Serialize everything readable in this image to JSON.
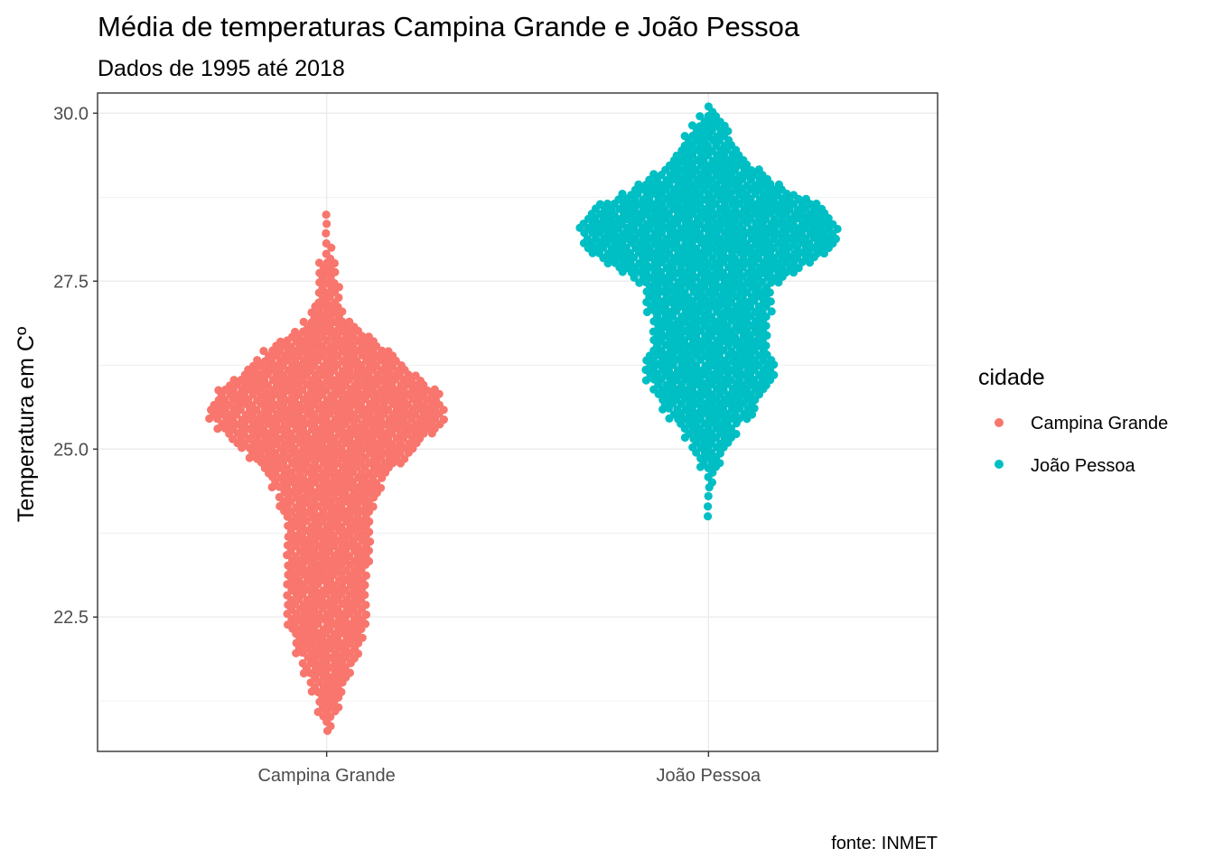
{
  "chart_data": {
    "type": "scatter",
    "subtype": "beeswarm",
    "title": "Média de temperaturas Campina Grande e João Pessoa",
    "subtitle": "Dados de 1995 até 2018",
    "xlabel": "",
    "ylabel": "Temperatura em Cº",
    "caption": "fonte: INMET",
    "categories": [
      "Campina Grande",
      "João Pessoa"
    ],
    "ylim": [
      20.5,
      30.3
    ],
    "y_ticks": [
      22.5,
      25.0,
      27.5,
      30.0
    ],
    "y_tick_labels": [
      "22.5",
      "25.0",
      "27.5",
      "30.0"
    ],
    "grid": true,
    "legend": {
      "title": "cidade",
      "position": "right",
      "entries": [
        "Campina Grande",
        "João Pessoa"
      ]
    },
    "series": [
      {
        "name": "Campina Grande",
        "color": "#F8766D",
        "category": "Campina Grande",
        "min": 20.8,
        "max": 28.6,
        "density_profile": [
          [
            20.8,
            2
          ],
          [
            21.2,
            6
          ],
          [
            21.6,
            10
          ],
          [
            22.0,
            16
          ],
          [
            22.5,
            19
          ],
          [
            23.0,
            19
          ],
          [
            23.5,
            20
          ],
          [
            24.0,
            21
          ],
          [
            24.5,
            26
          ],
          [
            25.0,
            40
          ],
          [
            25.3,
            52
          ],
          [
            25.6,
            56
          ],
          [
            25.9,
            50
          ],
          [
            26.2,
            38
          ],
          [
            26.5,
            28
          ],
          [
            26.8,
            14
          ],
          [
            27.0,
            8
          ],
          [
            27.3,
            6
          ],
          [
            27.6,
            5
          ],
          [
            27.9,
            3
          ],
          [
            28.1,
            1
          ],
          [
            28.6,
            1
          ]
        ]
      },
      {
        "name": "João Pessoa",
        "color": "#00BFC4",
        "category": "João Pessoa",
        "min": 24.0,
        "max": 30.1,
        "density_profile": [
          [
            24.0,
            1
          ],
          [
            24.4,
            1
          ],
          [
            24.7,
            4
          ],
          [
            25.0,
            8
          ],
          [
            25.3,
            14
          ],
          [
            25.6,
            22
          ],
          [
            25.9,
            27
          ],
          [
            26.2,
            32
          ],
          [
            26.5,
            28
          ],
          [
            26.8,
            26
          ],
          [
            27.1,
            30
          ],
          [
            27.4,
            30
          ],
          [
            27.7,
            44
          ],
          [
            28.0,
            58
          ],
          [
            28.3,
            62
          ],
          [
            28.6,
            54
          ],
          [
            28.9,
            34
          ],
          [
            29.2,
            22
          ],
          [
            29.5,
            14
          ],
          [
            29.8,
            8
          ],
          [
            30.0,
            4
          ],
          [
            30.1,
            2
          ]
        ]
      }
    ]
  }
}
